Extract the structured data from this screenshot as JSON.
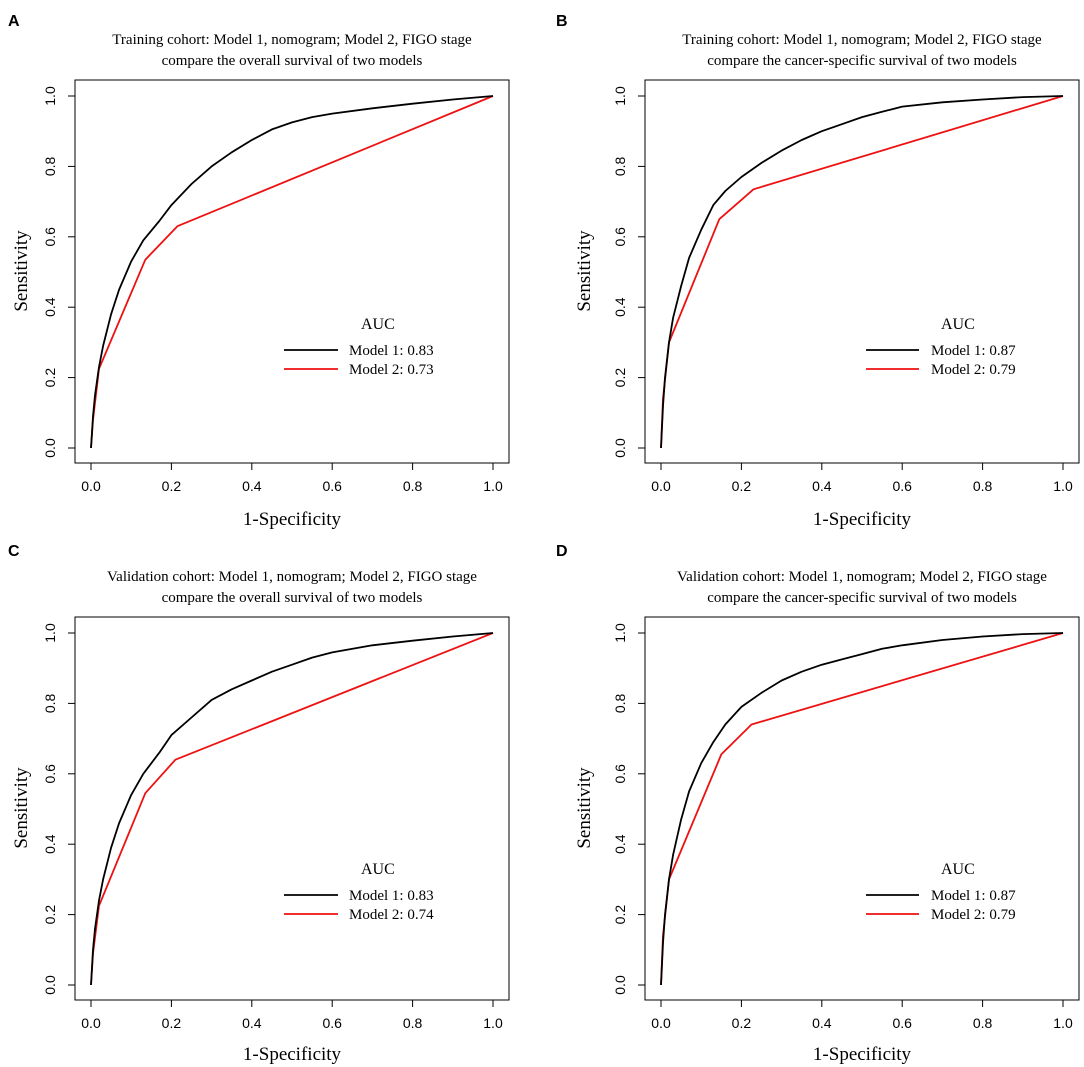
{
  "chart_data": [
    {
      "type": "line",
      "panel": "A",
      "title_line1": "Training cohort: Model 1, nomogram; Model 2, FIGO stage",
      "title_line2": "compare the overall survival of two models",
      "xlabel": "1-Specificity",
      "ylabel": "Sensitivity",
      "xlim": [
        0,
        1
      ],
      "ylim": [
        0,
        1
      ],
      "xticks": [
        "0.0",
        "0.2",
        "0.4",
        "0.6",
        "0.8",
        "1.0"
      ],
      "yticks": [
        "0.0",
        "0.2",
        "0.4",
        "0.6",
        "0.8",
        "1.0"
      ],
      "legend_title": "AUC",
      "series": [
        {
          "name": "Model 1",
          "label": "Model 1: 0.83",
          "color": "#000000",
          "x": [
            0,
            0.005,
            0.01,
            0.02,
            0.03,
            0.05,
            0.07,
            0.1,
            0.13,
            0.17,
            0.2,
            0.25,
            0.3,
            0.35,
            0.4,
            0.45,
            0.5,
            0.55,
            0.6,
            0.7,
            0.8,
            0.9,
            1
          ],
          "y": [
            0,
            0.09,
            0.15,
            0.23,
            0.29,
            0.38,
            0.45,
            0.53,
            0.59,
            0.645,
            0.69,
            0.75,
            0.8,
            0.84,
            0.875,
            0.905,
            0.925,
            0.94,
            0.95,
            0.965,
            0.978,
            0.99,
            1
          ]
        },
        {
          "name": "Model 2",
          "label": "Model 2: 0.73",
          "color": "#ee1111",
          "x": [
            0,
            0.005,
            0.02,
            0.135,
            0.215,
            1
          ],
          "y": [
            0,
            0.08,
            0.225,
            0.535,
            0.63,
            1
          ]
        }
      ]
    },
    {
      "type": "line",
      "panel": "B",
      "title_line1": "Training cohort: Model 1, nomogram; Model 2, FIGO stage",
      "title_line2": "compare the cancer-specific survival of two models",
      "xlabel": "1-Specificity",
      "ylabel": "Sensitivity",
      "xlim": [
        0,
        1
      ],
      "ylim": [
        0,
        1
      ],
      "xticks": [
        "0.0",
        "0.2",
        "0.4",
        "0.6",
        "0.8",
        "1.0"
      ],
      "yticks": [
        "0.0",
        "0.2",
        "0.4",
        "0.6",
        "0.8",
        "1.0"
      ],
      "legend_title": "AUC",
      "series": [
        {
          "name": "Model 1",
          "label": "Model 1: 0.87",
          "color": "#000000",
          "x": [
            0,
            0.005,
            0.01,
            0.02,
            0.03,
            0.05,
            0.07,
            0.1,
            0.13,
            0.16,
            0.2,
            0.25,
            0.3,
            0.35,
            0.4,
            0.45,
            0.5,
            0.55,
            0.6,
            0.7,
            0.8,
            0.9,
            1
          ],
          "y": [
            0,
            0.12,
            0.2,
            0.3,
            0.37,
            0.46,
            0.54,
            0.62,
            0.69,
            0.73,
            0.77,
            0.81,
            0.845,
            0.875,
            0.9,
            0.92,
            0.94,
            0.955,
            0.97,
            0.982,
            0.99,
            0.997,
            1
          ]
        },
        {
          "name": "Model 2",
          "label": "Model 2: 0.79",
          "color": "#ee1111",
          "x": [
            0,
            0.005,
            0.02,
            0.145,
            0.23,
            1
          ],
          "y": [
            0,
            0.14,
            0.3,
            0.65,
            0.735,
            1
          ]
        }
      ]
    },
    {
      "type": "line",
      "panel": "C",
      "title_line1": "Validation cohort: Model 1, nomogram; Model 2, FIGO stage",
      "title_line2": "compare the overall survival of two models",
      "xlabel": "1-Specificity",
      "ylabel": "Sensitivity",
      "xlim": [
        0,
        1
      ],
      "ylim": [
        0,
        1
      ],
      "xticks": [
        "0.0",
        "0.2",
        "0.4",
        "0.6",
        "0.8",
        "1.0"
      ],
      "yticks": [
        "0.0",
        "0.2",
        "0.4",
        "0.6",
        "0.8",
        "1.0"
      ],
      "legend_title": "AUC",
      "series": [
        {
          "name": "Model 1",
          "label": "Model 1: 0.83",
          "color": "#000000",
          "x": [
            0,
            0.005,
            0.01,
            0.02,
            0.03,
            0.05,
            0.07,
            0.1,
            0.13,
            0.17,
            0.2,
            0.25,
            0.3,
            0.35,
            0.4,
            0.45,
            0.5,
            0.55,
            0.6,
            0.7,
            0.8,
            0.9,
            1
          ],
          "y": [
            0,
            0.1,
            0.16,
            0.24,
            0.3,
            0.39,
            0.46,
            0.54,
            0.6,
            0.66,
            0.71,
            0.76,
            0.81,
            0.84,
            0.865,
            0.89,
            0.91,
            0.93,
            0.945,
            0.965,
            0.978,
            0.99,
            1
          ]
        },
        {
          "name": "Model 2",
          "label": "Model 2: 0.74",
          "color": "#ee1111",
          "x": [
            0,
            0.005,
            0.02,
            0.135,
            0.21,
            1
          ],
          "y": [
            0,
            0.09,
            0.225,
            0.545,
            0.64,
            1
          ]
        }
      ]
    },
    {
      "type": "line",
      "panel": "D",
      "title_line1": "Validation cohort: Model 1, nomogram; Model 2, FIGO stage",
      "title_line2": "compare the cancer-specific survival of two models",
      "xlabel": "1-Specificity",
      "ylabel": "Sensitivity",
      "xlim": [
        0,
        1
      ],
      "ylim": [
        0,
        1
      ],
      "xticks": [
        "0.0",
        "0.2",
        "0.4",
        "0.6",
        "0.8",
        "1.0"
      ],
      "yticks": [
        "0.0",
        "0.2",
        "0.4",
        "0.6",
        "0.8",
        "1.0"
      ],
      "legend_title": "AUC",
      "series": [
        {
          "name": "Model 1",
          "label": "Model 1: 0.87",
          "color": "#000000",
          "x": [
            0,
            0.005,
            0.01,
            0.02,
            0.03,
            0.05,
            0.07,
            0.1,
            0.13,
            0.16,
            0.2,
            0.25,
            0.3,
            0.35,
            0.4,
            0.45,
            0.5,
            0.55,
            0.6,
            0.7,
            0.8,
            0.9,
            1
          ],
          "y": [
            0,
            0.12,
            0.2,
            0.3,
            0.37,
            0.47,
            0.55,
            0.63,
            0.69,
            0.74,
            0.79,
            0.83,
            0.865,
            0.89,
            0.91,
            0.925,
            0.94,
            0.955,
            0.965,
            0.98,
            0.99,
            0.997,
            1
          ]
        },
        {
          "name": "Model 2",
          "label": "Model 2: 0.79",
          "color": "#ee1111",
          "x": [
            0,
            0.005,
            0.02,
            0.15,
            0.225,
            1
          ],
          "y": [
            0,
            0.14,
            0.3,
            0.655,
            0.74,
            1
          ]
        }
      ]
    }
  ]
}
